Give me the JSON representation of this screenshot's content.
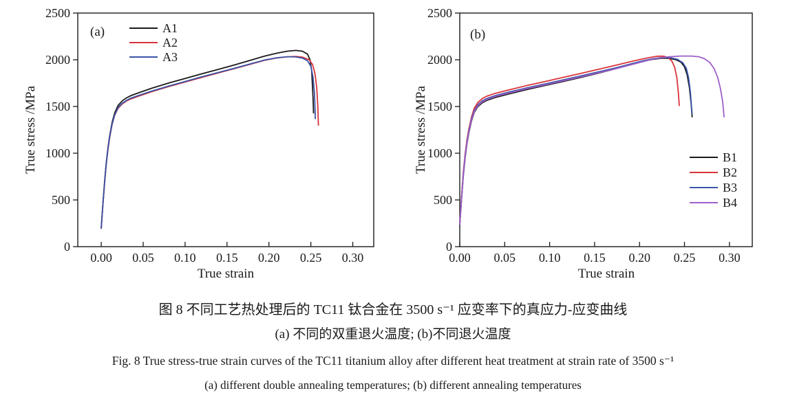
{
  "figure": {
    "caption_cn_line1": "图 8  不同工艺热处理后的 TC11 钛合金在 3500 s⁻¹ 应变率下的真应力-应变曲线",
    "caption_cn_line2": "(a) 不同的双重退火温度; (b)不同退火温度",
    "caption_en_line1": "Fig. 8  True stress-true strain curves of the TC11 titanium alloy after different heat treatment at strain rate of 3500 s⁻¹",
    "caption_en_line2": "(a) different double annealing temperatures; (b) different annealing temperatures"
  },
  "colors": {
    "axis": "#1a1a1a",
    "black_series": "#1a1a1a",
    "red_series": "#d8333a",
    "blue_series": "#3a54a8",
    "purple_series": "#9d5fc9"
  },
  "chart_data": [
    {
      "type": "line",
      "panel_label": "(a)",
      "xlabel": "True strain",
      "ylabel": "True stress /MPa",
      "xlim": [
        -0.028,
        0.325
      ],
      "ylim": [
        0,
        2500
      ],
      "xticks": [
        0.0,
        0.05,
        0.1,
        0.15,
        0.2,
        0.25,
        0.3
      ],
      "yticks": [
        0,
        500,
        1000,
        1500,
        2000,
        2500
      ],
      "grid": false,
      "legend_position": "upper-left",
      "series": [
        {
          "name": "A1",
          "color": "#1a1a1a",
          "points": [
            [
              0.0,
              200
            ],
            [
              0.001,
              330
            ],
            [
              0.002,
              460
            ],
            [
              0.004,
              700
            ],
            [
              0.006,
              900
            ],
            [
              0.008,
              1060
            ],
            [
              0.01,
              1185
            ],
            [
              0.013,
              1330
            ],
            [
              0.016,
              1430
            ],
            [
              0.02,
              1510
            ],
            [
              0.025,
              1560
            ],
            [
              0.03,
              1592
            ],
            [
              0.035,
              1615
            ],
            [
              0.045,
              1648
            ],
            [
              0.06,
              1695
            ],
            [
              0.08,
              1750
            ],
            [
              0.1,
              1800
            ],
            [
              0.12,
              1850
            ],
            [
              0.14,
              1898
            ],
            [
              0.16,
              1948
            ],
            [
              0.18,
              2000
            ],
            [
              0.195,
              2040
            ],
            [
              0.21,
              2072
            ],
            [
              0.222,
              2092
            ],
            [
              0.232,
              2100
            ],
            [
              0.24,
              2092
            ],
            [
              0.246,
              2060
            ],
            [
              0.249,
              2000
            ],
            [
              0.251,
              1880
            ],
            [
              0.252,
              1700
            ],
            [
              0.2528,
              1540
            ],
            [
              0.2532,
              1430
            ]
          ]
        },
        {
          "name": "A2",
          "color": "#d8333a",
          "points": [
            [
              0.0,
              195
            ],
            [
              0.001,
              320
            ],
            [
              0.002,
              445
            ],
            [
              0.004,
              680
            ],
            [
              0.006,
              880
            ],
            [
              0.008,
              1040
            ],
            [
              0.01,
              1165
            ],
            [
              0.013,
              1308
            ],
            [
              0.016,
              1405
            ],
            [
              0.02,
              1480
            ],
            [
              0.025,
              1528
            ],
            [
              0.03,
              1558
            ],
            [
              0.035,
              1580
            ],
            [
              0.045,
              1612
            ],
            [
              0.06,
              1658
            ],
            [
              0.08,
              1712
            ],
            [
              0.1,
              1762
            ],
            [
              0.12,
              1812
            ],
            [
              0.14,
              1860
            ],
            [
              0.16,
              1908
            ],
            [
              0.18,
              1958
            ],
            [
              0.195,
              1995
            ],
            [
              0.21,
              2020
            ],
            [
              0.222,
              2032
            ],
            [
              0.232,
              2035
            ],
            [
              0.24,
              2028
            ],
            [
              0.248,
              2000
            ],
            [
              0.252,
              1950
            ],
            [
              0.255,
              1850
            ],
            [
              0.257,
              1700
            ],
            [
              0.2583,
              1500
            ],
            [
              0.259,
              1300
            ]
          ]
        },
        {
          "name": "A3",
          "color": "#3a54a8",
          "points": [
            [
              0.0,
              198
            ],
            [
              0.001,
              325
            ],
            [
              0.002,
              452
            ],
            [
              0.004,
              690
            ],
            [
              0.006,
              890
            ],
            [
              0.008,
              1050
            ],
            [
              0.01,
              1175
            ],
            [
              0.013,
              1315
            ],
            [
              0.016,
              1412
            ],
            [
              0.02,
              1488
            ],
            [
              0.025,
              1535
            ],
            [
              0.03,
              1565
            ],
            [
              0.035,
              1588
            ],
            [
              0.045,
              1620
            ],
            [
              0.06,
              1665
            ],
            [
              0.08,
              1718
            ],
            [
              0.1,
              1768
            ],
            [
              0.12,
              1818
            ],
            [
              0.14,
              1865
            ],
            [
              0.16,
              1912
            ],
            [
              0.18,
              1962
            ],
            [
              0.195,
              1998
            ],
            [
              0.21,
              2022
            ],
            [
              0.222,
              2032
            ],
            [
              0.232,
              2030
            ],
            [
              0.24,
              2018
            ],
            [
              0.246,
              1990
            ],
            [
              0.25,
              1930
            ],
            [
              0.2525,
              1820
            ],
            [
              0.2542,
              1650
            ],
            [
              0.255,
              1480
            ],
            [
              0.2553,
              1370
            ]
          ]
        }
      ]
    },
    {
      "type": "line",
      "panel_label": "(b)",
      "xlabel": "True strain",
      "ylabel": "True stress /MPa",
      "xlim": [
        0.0,
        0.3254
      ],
      "ylim": [
        0,
        2500
      ],
      "xticks": [
        0.0,
        0.05,
        0.1,
        0.15,
        0.2,
        0.25,
        0.3
      ],
      "yticks": [
        0,
        500,
        1000,
        1500,
        2000,
        2500
      ],
      "grid": false,
      "legend_position": "middle-right",
      "series": [
        {
          "name": "B1",
          "color": "#1a1a1a",
          "points": [
            [
              0.0,
              230
            ],
            [
              0.001,
              370
            ],
            [
              0.002,
              505
            ],
            [
              0.004,
              760
            ],
            [
              0.006,
              950
            ],
            [
              0.008,
              1100
            ],
            [
              0.01,
              1215
            ],
            [
              0.013,
              1345
            ],
            [
              0.016,
              1435
            ],
            [
              0.02,
              1498
            ],
            [
              0.025,
              1540
            ],
            [
              0.03,
              1565
            ],
            [
              0.04,
              1598
            ],
            [
              0.055,
              1635
            ],
            [
              0.075,
              1682
            ],
            [
              0.095,
              1725
            ],
            [
              0.115,
              1768
            ],
            [
              0.135,
              1812
            ],
            [
              0.155,
              1858
            ],
            [
              0.175,
              1908
            ],
            [
              0.19,
              1948
            ],
            [
              0.205,
              1985
            ],
            [
              0.215,
              2005
            ],
            [
              0.225,
              2018
            ],
            [
              0.233,
              2015
            ],
            [
              0.24,
              2002
            ],
            [
              0.246,
              1975
            ],
            [
              0.25,
              1925
            ],
            [
              0.253,
              1840
            ],
            [
              0.2555,
              1700
            ],
            [
              0.2575,
              1520
            ],
            [
              0.2585,
              1390
            ]
          ]
        },
        {
          "name": "B2",
          "color": "#d8333a",
          "points": [
            [
              0.0,
              250
            ],
            [
              0.001,
              395
            ],
            [
              0.002,
              540
            ],
            [
              0.004,
              800
            ],
            [
              0.006,
              990
            ],
            [
              0.008,
              1140
            ],
            [
              0.01,
              1255
            ],
            [
              0.013,
              1385
            ],
            [
              0.016,
              1478
            ],
            [
              0.02,
              1542
            ],
            [
              0.025,
              1585
            ],
            [
              0.03,
              1610
            ],
            [
              0.04,
              1642
            ],
            [
              0.055,
              1678
            ],
            [
              0.075,
              1725
            ],
            [
              0.095,
              1768
            ],
            [
              0.115,
              1812
            ],
            [
              0.135,
              1855
            ],
            [
              0.155,
              1900
            ],
            [
              0.175,
              1945
            ],
            [
              0.19,
              1980
            ],
            [
              0.2,
              2002
            ],
            [
              0.21,
              2022
            ],
            [
              0.22,
              2038
            ],
            [
              0.227,
              2038
            ],
            [
              0.232,
              2022
            ],
            [
              0.236,
              1985
            ],
            [
              0.239,
              1920
            ],
            [
              0.2415,
              1810
            ],
            [
              0.2432,
              1650
            ],
            [
              0.2442,
              1510
            ]
          ]
        },
        {
          "name": "B3",
          "color": "#3a54a8",
          "points": [
            [
              0.0,
              240
            ],
            [
              0.001,
              382
            ],
            [
              0.002,
              522
            ],
            [
              0.004,
              780
            ],
            [
              0.006,
              970
            ],
            [
              0.008,
              1120
            ],
            [
              0.01,
              1235
            ],
            [
              0.013,
              1365
            ],
            [
              0.016,
              1455
            ],
            [
              0.02,
              1518
            ],
            [
              0.025,
              1560
            ],
            [
              0.03,
              1585
            ],
            [
              0.04,
              1618
            ],
            [
              0.055,
              1655
            ],
            [
              0.075,
              1700
            ],
            [
              0.095,
              1742
            ],
            [
              0.115,
              1785
            ],
            [
              0.135,
              1828
            ],
            [
              0.155,
              1872
            ],
            [
              0.175,
              1918
            ],
            [
              0.19,
              1955
            ],
            [
              0.205,
              1992
            ],
            [
              0.215,
              2012
            ],
            [
              0.225,
              2025
            ],
            [
              0.234,
              2022
            ],
            [
              0.242,
              2005
            ],
            [
              0.248,
              1970
            ],
            [
              0.252,
              1910
            ],
            [
              0.2545,
              1810
            ],
            [
              0.2565,
              1660
            ],
            [
              0.2578,
              1500
            ],
            [
              0.2585,
              1420
            ]
          ]
        },
        {
          "name": "B4",
          "color": "#9d5fc9",
          "points": [
            [
              0.0,
              235
            ],
            [
              0.001,
              375
            ],
            [
              0.002,
              512
            ],
            [
              0.004,
              770
            ],
            [
              0.006,
              958
            ],
            [
              0.008,
              1108
            ],
            [
              0.01,
              1225
            ],
            [
              0.013,
              1355
            ],
            [
              0.016,
              1445
            ],
            [
              0.02,
              1508
            ],
            [
              0.025,
              1550
            ],
            [
              0.03,
              1575
            ],
            [
              0.04,
              1608
            ],
            [
              0.055,
              1645
            ],
            [
              0.075,
              1692
            ],
            [
              0.095,
              1732
            ],
            [
              0.115,
              1775
            ],
            [
              0.135,
              1818
            ],
            [
              0.155,
              1862
            ],
            [
              0.175,
              1908
            ],
            [
              0.195,
              1958
            ],
            [
              0.215,
              2008
            ],
            [
              0.23,
              2030
            ],
            [
              0.245,
              2040
            ],
            [
              0.258,
              2040
            ],
            [
              0.266,
              2032
            ],
            [
              0.272,
              2012
            ],
            [
              0.278,
              1972
            ],
            [
              0.283,
              1905
            ],
            [
              0.287,
              1810
            ],
            [
              0.29,
              1690
            ],
            [
              0.2925,
              1550
            ],
            [
              0.294,
              1390
            ]
          ]
        }
      ]
    }
  ]
}
